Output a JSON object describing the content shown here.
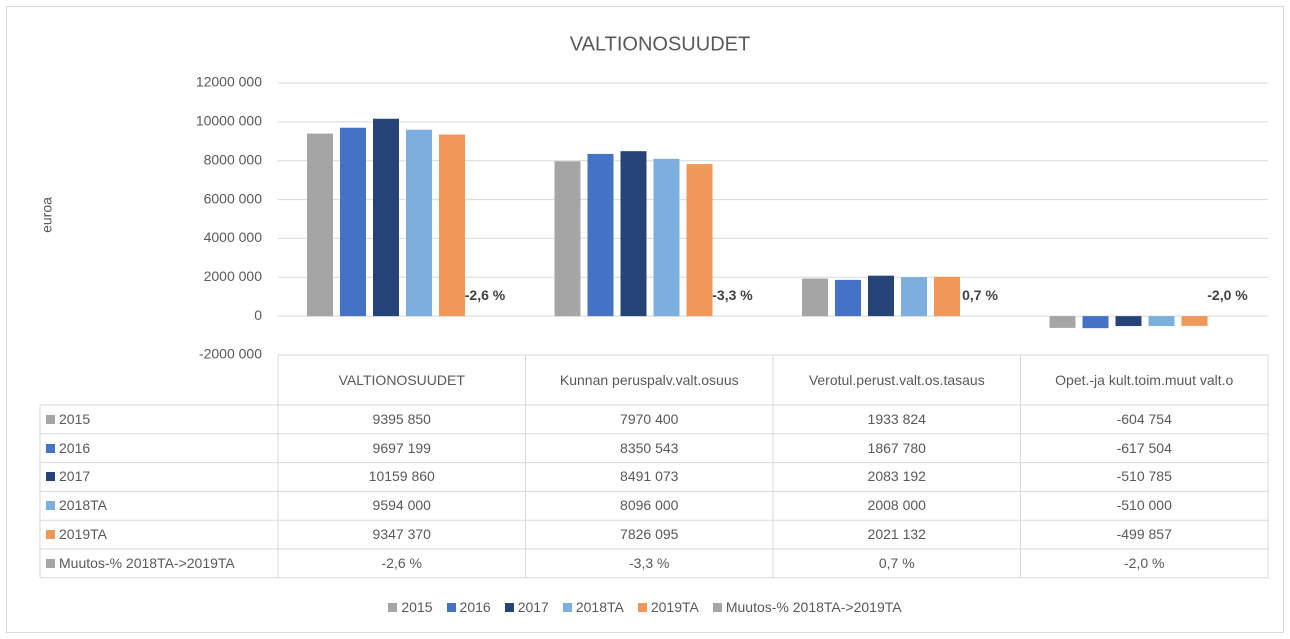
{
  "chart_data": {
    "type": "bar",
    "title": "VALTIONOSUUDET",
    "y_label": "euroa",
    "categories": [
      "VALTIONOSUUDET",
      "Kunnan peruspalv.valt.osuus",
      "Verotul.perust.valt.os.tasaus",
      "Opet.-ja kult.toim.muut valt.o"
    ],
    "series": [
      {
        "name": "2015",
        "color": "#a5a5a5",
        "values": [
          9395850,
          7970400,
          1933824,
          -604754
        ],
        "value_labels": [
          "9395 850",
          "7970 400",
          "1933 824",
          "-604 754"
        ]
      },
      {
        "name": "2016",
        "color": "#4472c4",
        "values": [
          9697199,
          8350543,
          1867780,
          -617504
        ],
        "value_labels": [
          "9697 199",
          "8350 543",
          "1867 780",
          "-617 504"
        ]
      },
      {
        "name": "2017",
        "color": "#264478",
        "values": [
          10159860,
          8491073,
          2083192,
          -510785
        ],
        "value_labels": [
          "10159 860",
          "8491 073",
          "2083 192",
          "-510 785"
        ]
      },
      {
        "name": "2018TA",
        "color": "#7cafdd",
        "values": [
          9594000,
          8096000,
          2008000,
          -510000
        ],
        "value_labels": [
          "9594 000",
          "8096 000",
          "2008 000",
          "-510 000"
        ]
      },
      {
        "name": "2019TA",
        "color": "#f1975a",
        "values": [
          9347370,
          7826095,
          2021132,
          -499857
        ],
        "value_labels": [
          "9347 370",
          "7826 095",
          "2021 132",
          "-499 857"
        ]
      },
      {
        "name": "Muutos-% 2018TA->2019TA",
        "color": "#a5a5a5",
        "values": [
          -2.6,
          -3.3,
          0.7,
          -2.0
        ],
        "value_labels": [
          "-2,6 %",
          "-3,3 %",
          "0,7 %",
          "-2,0 %"
        ]
      }
    ],
    "ylim": [
      -2000000,
      12000000
    ],
    "yticks": [
      {
        "value": -2000000,
        "label": "-2000 000"
      },
      0,
      {
        "value": 2000000,
        "label": "2000 000"
      },
      {
        "value": 4000000,
        "label": "4000 000"
      },
      {
        "value": 6000000,
        "label": "6000 000"
      },
      {
        "value": 8000000,
        "label": "8000 000"
      },
      {
        "value": 10000000,
        "label": "10000 000"
      },
      {
        "value": 12000000,
        "label": "12000 000"
      }
    ],
    "grid": true,
    "legend": "bottom"
  }
}
